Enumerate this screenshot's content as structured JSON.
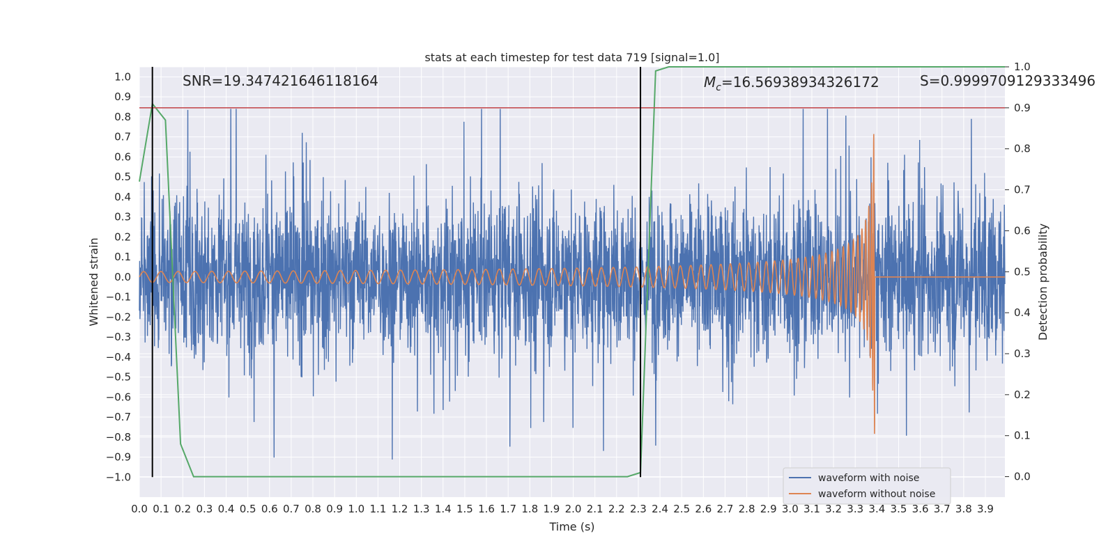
{
  "chart_data": {
    "type": "line",
    "title": "stats at each timestep for test data 719 [signal=1.0]",
    "xlabel": "Time (s)",
    "ylabel": "Whitened strain",
    "y2label": "Detection probability",
    "xlim": [
      0.0,
      3.99
    ],
    "ylim": [
      -1.1,
      1.05
    ],
    "y2lim": [
      -0.05,
      1.0
    ],
    "x_ticks": [
      "0.0",
      "0.1",
      "0.2",
      "0.3",
      "0.4",
      "0.5",
      "0.6",
      "0.7",
      "0.8",
      "0.9",
      "1.0",
      "1.1",
      "1.2",
      "1.3",
      "1.4",
      "1.5",
      "1.6",
      "1.7",
      "1.8",
      "1.9",
      "2.0",
      "2.1",
      "2.2",
      "2.3",
      "2.4",
      "2.5",
      "2.6",
      "2.7",
      "2.8",
      "2.9",
      "3.0",
      "3.1",
      "3.2",
      "3.3",
      "3.4",
      "3.5",
      "3.6",
      "3.7",
      "3.8",
      "3.9"
    ],
    "y_ticks": [
      "1.0",
      "0.9",
      "0.8",
      "0.7",
      "0.6",
      "0.5",
      "0.4",
      "0.3",
      "0.2",
      "0.1",
      "0.0",
      "−0.1",
      "−0.2",
      "−0.3",
      "−0.4",
      "−0.5",
      "−0.6",
      "−0.7",
      "−0.8",
      "−0.9",
      "−1.0"
    ],
    "y2_ticks": [
      "1.0",
      "0.9",
      "0.8",
      "0.7",
      "0.6",
      "0.5",
      "0.4",
      "0.3",
      "0.2",
      "0.1",
      "0.0"
    ],
    "grid": true,
    "legend_position": "lower-right",
    "series": [
      {
        "name": "waveform with noise",
        "color": "#4c72b0",
        "axis": "left",
        "description_values": "noise between about -1.0 and 0.85"
      },
      {
        "name": "waveform without noise",
        "color": "#dd8452",
        "axis": "left",
        "description_values": "chirp growing from ±0.03 at t=0 to about ±0.8 near t=3.39 s, then 0"
      },
      {
        "name": "",
        "color": "#55a868",
        "axis": "right",
        "x": [
          0.0,
          0.06,
          0.12,
          0.19,
          0.25,
          2.25,
          2.31,
          2.38,
          2.44,
          3.99
        ],
        "values": [
          0.72,
          0.91,
          0.87,
          0.08,
          0.0,
          0.0,
          0.01,
          0.99,
          1.0,
          1.0
        ]
      }
    ],
    "threshold": {
      "axis": "right",
      "value": 0.9,
      "color": "#c44e52"
    },
    "vlines": [
      0.06,
      2.31
    ],
    "annotations": {
      "snr": "SNR=19.347421646118164",
      "mc": "=16.56938934326172",
      "mc_symbol": "M",
      "mc_sub": "c",
      "s": "S=0.9999709129333496"
    }
  }
}
